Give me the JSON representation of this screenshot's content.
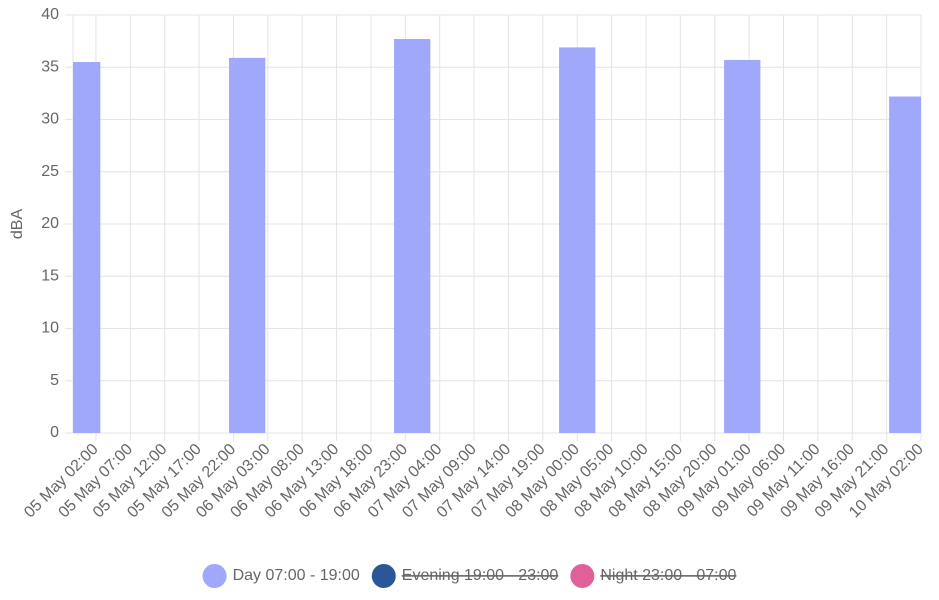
{
  "chart_data": {
    "type": "bar",
    "y_label": "dBA",
    "x": [
      "05 May 00:00",
      "06 May 00:00",
      "07 May 00:00",
      "08 May 00:00",
      "09 May 00:00",
      "10 May 00:00"
    ],
    "series": [
      {
        "name": "Day 07:00 - 19:00",
        "color": "#a0a8fc",
        "hidden": false,
        "values": [
          35.5,
          35.9,
          37.7,
          36.9,
          35.7,
          32.2
        ]
      },
      {
        "name": "Evening 19:00 - 23:00",
        "color": "#2b5797",
        "hidden": true,
        "values": [
          null,
          null,
          null,
          null,
          null,
          null
        ]
      },
      {
        "name": "Night 23:00 - 07:00",
        "color": "#e0609a",
        "hidden": true,
        "values": [
          null,
          null,
          null,
          null,
          null,
          null
        ]
      }
    ],
    "xlim": [
      "04 May 22:40",
      "10 May 02:00"
    ],
    "xticks": [
      "05 May 02:00",
      "05 May 07:00",
      "05 May 12:00",
      "05 May 17:00",
      "05 May 22:00",
      "06 May 03:00",
      "06 May 08:00",
      "06 May 13:00",
      "06 May 18:00",
      "06 May 23:00",
      "07 May 04:00",
      "07 May 09:00",
      "07 May 14:00",
      "07 May 19:00",
      "08 May 00:00",
      "08 May 05:00",
      "08 May 10:00",
      "08 May 15:00",
      "08 May 20:00",
      "09 May 01:00",
      "09 May 06:00",
      "09 May 11:00",
      "09 May 16:00",
      "09 May 21:00",
      "10 May 02:00"
    ],
    "ylim": [
      0,
      40
    ],
    "yticks": [
      0,
      5,
      10,
      15,
      20,
      25,
      30,
      35,
      40
    ],
    "grid": true,
    "legend": "bottom"
  }
}
